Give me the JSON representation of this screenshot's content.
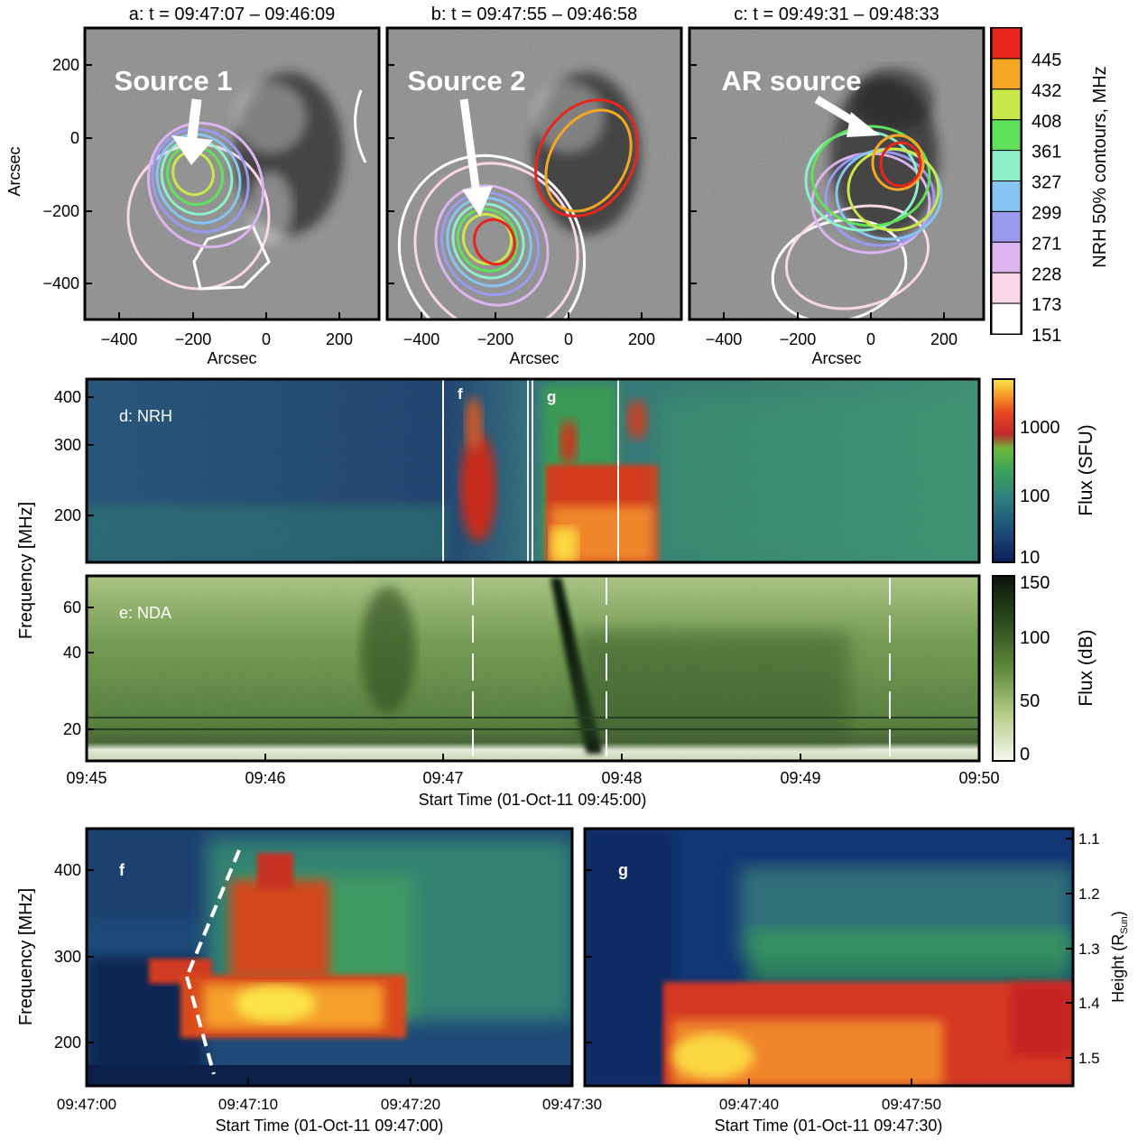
{
  "contour_maps": {
    "panels": [
      {
        "id": "a",
        "title": "a: t = 09:47:07 – 09:46:09",
        "annotation": "Source 1"
      },
      {
        "id": "b",
        "title": "b: t = 09:47:55 – 09:46:58",
        "annotation": "Source 2"
      },
      {
        "id": "c",
        "title": "c: t = 09:49:31 – 09:48:33",
        "annotation": "AR source"
      }
    ],
    "x_label": "Arcsec",
    "y_label": "Arcsec",
    "x_ticks": [
      "−400",
      "−200",
      "0",
      "200"
    ],
    "y_ticks": [
      "200",
      "0",
      "−200",
      "−400"
    ],
    "legend_title": "NRH 50% contours, MHz",
    "legend": [
      {
        "freq": "445",
        "color": "#e8261c"
      },
      {
        "freq": "432",
        "color": "#f5a623"
      },
      {
        "freq": "408",
        "color": "#c8e84a"
      },
      {
        "freq": "361",
        "color": "#5fe25a"
      },
      {
        "freq": "327",
        "color": "#8df0c8"
      },
      {
        "freq": "299",
        "color": "#86c4f2"
      },
      {
        "freq": "271",
        "color": "#9a9af0"
      },
      {
        "freq": "228",
        "color": "#dcb4f0"
      },
      {
        "freq": "173",
        "color": "#f8d8e8"
      },
      {
        "freq": "151",
        "color": "#ffffff"
      }
    ]
  },
  "spectrograms": {
    "nrh": {
      "label": "d: NRH",
      "y_ticks": [
        "400",
        "300",
        "200"
      ],
      "markers": [
        "f",
        "g"
      ],
      "colorbar_label": "Flux (SFU)",
      "colorbar_ticks": [
        "1000",
        "100",
        "10"
      ]
    },
    "nda": {
      "label": "e: NDA",
      "y_ticks": [
        "60",
        "40",
        "20"
      ],
      "colorbar_label": "Flux (dB)",
      "colorbar_ticks": [
        "150",
        "100",
        "50",
        "0"
      ]
    },
    "y_label": "Frequency [MHz]",
    "x_ticks": [
      "09:45",
      "09:46",
      "09:47",
      "09:48",
      "09:49",
      "09:50"
    ],
    "x_label": "Start Time (01-Oct-11 09:45:00)"
  },
  "zooms": {
    "f": {
      "label": "f",
      "x_ticks": [
        "09:47:00",
        "09:47:10",
        "09:47:20",
        "09:47:30"
      ],
      "x_label": "Start Time (01-Oct-11 09:47:00)"
    },
    "g": {
      "label": "g",
      "x_ticks": [
        "09:47:40",
        "09:47:50"
      ],
      "x_label": "Start Time (01-Oct-11 09:47:30)"
    },
    "y_label": "Frequency [MHz]",
    "y_ticks": [
      "400",
      "300",
      "200"
    ],
    "height_label": "Height (R",
    "height_sub": "Sun",
    "height_close": ")",
    "height_ticks": [
      "1.1",
      "1.2",
      "1.3",
      "1.4",
      "1.5"
    ]
  }
}
